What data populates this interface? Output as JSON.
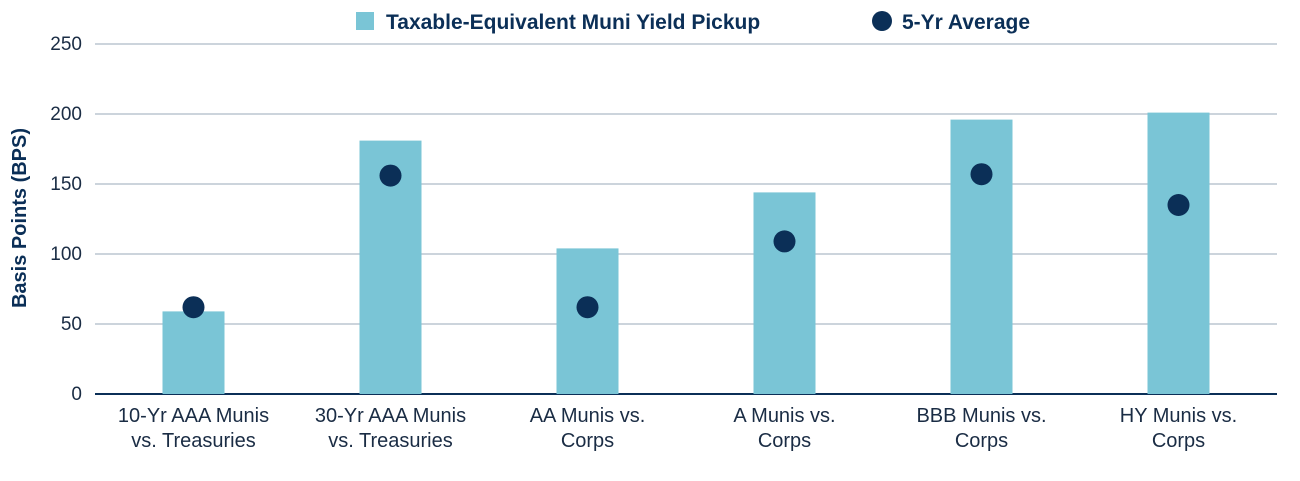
{
  "chart_data": {
    "type": "bar",
    "title": "",
    "xlabel": "",
    "ylabel": "Basis Points (BPS)",
    "ylim": [
      0,
      250
    ],
    "yticks": [
      0,
      50,
      100,
      150,
      200,
      250
    ],
    "grid": true,
    "legend_placement": "top-center",
    "categories": [
      [
        "10-Yr AAA Munis",
        "vs. Treasuries"
      ],
      [
        "30-Yr AAA Munis",
        "vs. Treasuries"
      ],
      [
        "AA Munis vs.",
        "Corps"
      ],
      [
        "A Munis vs.",
        "Corps"
      ],
      [
        "BBB Munis vs.",
        "Corps"
      ],
      [
        "HY Munis vs.",
        "Corps"
      ]
    ],
    "series": [
      {
        "name": "Taxable-Equivalent Muni Yield Pickup",
        "kind": "bar",
        "color": "#7ac5d6",
        "values": [
          59,
          181,
          104,
          144,
          196,
          201
        ]
      },
      {
        "name": "5-Yr Average",
        "kind": "dot",
        "color": "#0b2f57",
        "values": [
          62,
          156,
          62,
          109,
          157,
          135
        ]
      }
    ]
  },
  "colors": {
    "grid": "#9aa9b8",
    "axis": "#0b2f57",
    "text": "#1a2c44"
  }
}
